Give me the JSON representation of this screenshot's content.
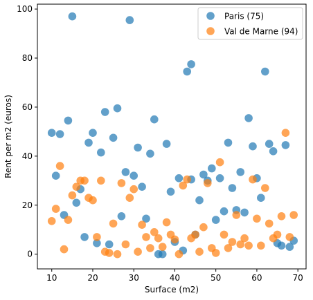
{
  "chart_data": {
    "type": "scatter",
    "title": "",
    "xlabel": "Surface (m2)",
    "ylabel": "Rent per m2 (euros)",
    "xlim": [
      6.5,
      72
    ],
    "ylim": [
      -6,
      102
    ],
    "xticks": [
      10,
      20,
      30,
      40,
      50,
      60,
      70
    ],
    "yticks": [
      0,
      20,
      40,
      60,
      80,
      100
    ],
    "grid": false,
    "legend_position": "top-right",
    "series": [
      {
        "name": "Paris (75)",
        "color": "#1f77b4",
        "points": [
          [
            10,
            49.5
          ],
          [
            11,
            32
          ],
          [
            12,
            49
          ],
          [
            13,
            16
          ],
          [
            14,
            54.5
          ],
          [
            15,
            97
          ],
          [
            16,
            21
          ],
          [
            17,
            26.5
          ],
          [
            18,
            7
          ],
          [
            19,
            45.5
          ],
          [
            20,
            49.5
          ],
          [
            21,
            4.5
          ],
          [
            22,
            41.5
          ],
          [
            23,
            58
          ],
          [
            24,
            4
          ],
          [
            25,
            47.5
          ],
          [
            26,
            59.5
          ],
          [
            27,
            15.5
          ],
          [
            28,
            33.5
          ],
          [
            29,
            95.5
          ],
          [
            30,
            32
          ],
          [
            31,
            43.5
          ],
          [
            32,
            27.5
          ],
          [
            33,
            14.5
          ],
          [
            34,
            41
          ],
          [
            35,
            55
          ],
          [
            36,
            0
          ],
          [
            37,
            0
          ],
          [
            38,
            45
          ],
          [
            39,
            25.5
          ],
          [
            40,
            5
          ],
          [
            41,
            31
          ],
          [
            42,
            1.5
          ],
          [
            43,
            74.5
          ],
          [
            44,
            77.5
          ],
          [
            44,
            30.5
          ],
          [
            45,
            8
          ],
          [
            46,
            22
          ],
          [
            47,
            32.5
          ],
          [
            48,
            30
          ],
          [
            49,
            35
          ],
          [
            50,
            14
          ],
          [
            51,
            31
          ],
          [
            52,
            17.5
          ],
          [
            53,
            45.5
          ],
          [
            54,
            27
          ],
          [
            55,
            18
          ],
          [
            56,
            33.5
          ],
          [
            57,
            17
          ],
          [
            58,
            55.5
          ],
          [
            59,
            44
          ],
          [
            60,
            31
          ],
          [
            61,
            23
          ],
          [
            62,
            74.5
          ],
          [
            63,
            45
          ],
          [
            64,
            42
          ],
          [
            65,
            4.5
          ],
          [
            66,
            3.5
          ],
          [
            67,
            44.5
          ],
          [
            68,
            3
          ],
          [
            69,
            5.5
          ]
        ]
      },
      {
        "name": "Val de Marne (94)",
        "color": "#ff7f0e",
        "points": [
          [
            10,
            13.5
          ],
          [
            11,
            18.5
          ],
          [
            12,
            36
          ],
          [
            13,
            2
          ],
          [
            14,
            14
          ],
          [
            15,
            24
          ],
          [
            16,
            27.5
          ],
          [
            17,
            30
          ],
          [
            18,
            30
          ],
          [
            19,
            23
          ],
          [
            20,
            22
          ],
          [
            21,
            7
          ],
          [
            22,
            30
          ],
          [
            23,
            1
          ],
          [
            24,
            0.5
          ],
          [
            25,
            12.5
          ],
          [
            26,
            0
          ],
          [
            27,
            29
          ],
          [
            28,
            4
          ],
          [
            29,
            23
          ],
          [
            30,
            26.5
          ],
          [
            31,
            1
          ],
          [
            32,
            12
          ],
          [
            33,
            7
          ],
          [
            34,
            2.5
          ],
          [
            35,
            9
          ],
          [
            36,
            6.5
          ],
          [
            37,
            3
          ],
          [
            38,
            13
          ],
          [
            39,
            8
          ],
          [
            40,
            6
          ],
          [
            41,
            0
          ],
          [
            42,
            28
          ],
          [
            43,
            30.5
          ],
          [
            44,
            6.5
          ],
          [
            45,
            8
          ],
          [
            46,
            1
          ],
          [
            47,
            11
          ],
          [
            48,
            29
          ],
          [
            49,
            2.5
          ],
          [
            50,
            0.5
          ],
          [
            51,
            37.5
          ],
          [
            52,
            8
          ],
          [
            53,
            2.5
          ],
          [
            54,
            5
          ],
          [
            55,
            16
          ],
          [
            56,
            4
          ],
          [
            57,
            6.5
          ],
          [
            58,
            3.5
          ],
          [
            59,
            30.5
          ],
          [
            60,
            14.5
          ],
          [
            61,
            3.5
          ],
          [
            62,
            27
          ],
          [
            63,
            12.5
          ],
          [
            64,
            6.5
          ],
          [
            65,
            8
          ],
          [
            66,
            15.5
          ],
          [
            67,
            49.5
          ],
          [
            68,
            7
          ],
          [
            69,
            16
          ]
        ]
      }
    ]
  }
}
